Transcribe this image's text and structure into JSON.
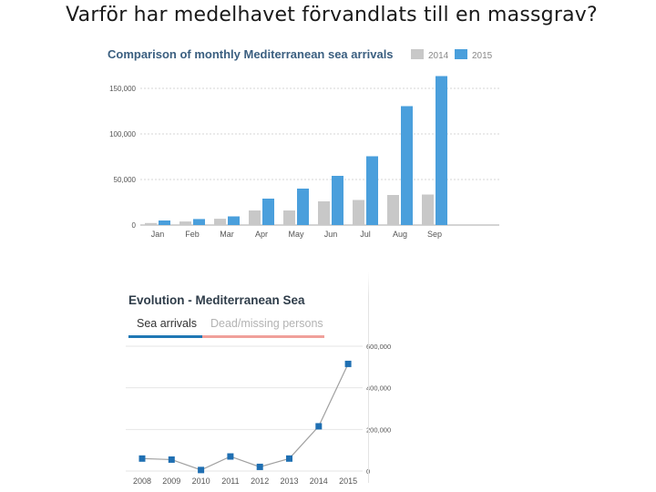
{
  "slide": {
    "title": "Varför har medelhavet förvandlats till en massgrav?"
  },
  "chart_data": [
    {
      "type": "bar",
      "title": "Comparison of monthly Mediterranean sea arrivals",
      "categories": [
        "Jan",
        "Feb",
        "Mar",
        "Apr",
        "May",
        "Jun",
        "Jul",
        "Aug",
        "Sep"
      ],
      "series": [
        {
          "name": "2014",
          "color": "#c8c8c8",
          "values": [
            2200,
            3900,
            6900,
            16000,
            16000,
            26000,
            27500,
            33000,
            33500
          ]
        },
        {
          "name": "2015",
          "color": "#4a9fdc",
          "values": [
            5000,
            6600,
            9500,
            29000,
            40000,
            54000,
            75500,
            130500,
            163500
          ]
        }
      ],
      "yticks": [
        0,
        50000,
        100000,
        150000
      ],
      "ytick_labels": [
        "0",
        "50,000",
        "100,000",
        "150,000"
      ],
      "ylim": [
        0,
        165000
      ],
      "grid": true,
      "legend": "top-right"
    },
    {
      "type": "line",
      "title": "Evolution - Mediterranean Sea",
      "tabs": [
        {
          "label": "Sea arrivals",
          "active": true
        },
        {
          "label": "Dead/missing persons",
          "active": false
        }
      ],
      "x": [
        "2008",
        "2009",
        "2010",
        "2011",
        "2012",
        "2013",
        "2014",
        "2015"
      ],
      "series": [
        {
          "color": "#1f6fb2",
          "values": [
            60000,
            55000,
            5000,
            70000,
            20000,
            60000,
            215000,
            515000
          ]
        }
      ],
      "yticks": [
        0,
        200000,
        400000,
        600000
      ],
      "ytick_labels": [
        "0",
        "200,000",
        "400,000",
        "600,000"
      ],
      "ylim": [
        0,
        600000
      ],
      "grid": true
    }
  ]
}
